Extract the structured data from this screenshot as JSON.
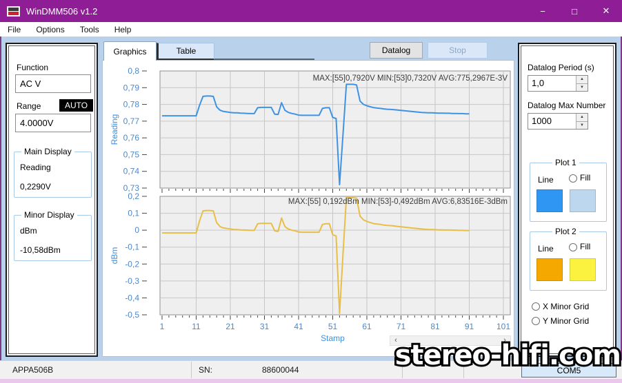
{
  "window": {
    "title": "WinDMM506 v1.2",
    "controls": {
      "minimize": "−",
      "maximize": "□",
      "close": "✕"
    }
  },
  "menu": {
    "items": [
      "File",
      "Options",
      "Tools",
      "Help"
    ]
  },
  "left_panel": {
    "function_label": "Function",
    "function_value": "AC V",
    "range_label": "Range",
    "range_mode": "AUTO",
    "range_value": "4.0000V",
    "main_display": {
      "title": "Main Display",
      "mode": "Reading",
      "value": "0,2290V"
    },
    "minor_display": {
      "title": "Minor Display",
      "mode": "dBm",
      "value": "-10,58dBm"
    }
  },
  "tabs": {
    "graphics": "Graphics",
    "table": "Table"
  },
  "buttons": {
    "datalog": "Datalog",
    "stop": "Stop"
  },
  "right_panel": {
    "datalog_period_label": "Datalog Period (s)",
    "datalog_period_value": "1,0",
    "datalog_max_label": "Datalog Max Number",
    "datalog_max_value": "1000",
    "plot1": {
      "title": "Plot 1",
      "line_label": "Line",
      "fill_label": "Fill",
      "line_color": "#2F96F3",
      "fill_color": "#BDD7EE"
    },
    "plot2": {
      "title": "Plot 2",
      "line_label": "Line",
      "fill_label": "Fill",
      "line_color": "#F5A800",
      "fill_color": "#FBF23F"
    },
    "x_minor_grid_label": "X Minor Grid",
    "y_minor_grid_label": "Y Minor Grid"
  },
  "spinner": {
    "up": "▲",
    "down": "▼"
  },
  "scrollbar": {
    "left_glyph": "‹",
    "right_glyph": "›"
  },
  "statusbar": {
    "device": "APPA506B",
    "sn_label": "SN:",
    "sn_value": "88600044",
    "port": "COM5"
  },
  "watermark": "stereo-hifi.com",
  "chart_data": [
    {
      "type": "line",
      "ylabel": "Reading",
      "xlabel": "",
      "stats": "MAX:[55]0,7920V  MIN:[53]0,7320V  AVG:775,2967E-3V",
      "ylim": [
        0.73,
        0.8
      ],
      "ytick_labels": [
        "0,8",
        "0,79",
        "0,78",
        "0,77",
        "0,76",
        "0,75",
        "0,74",
        "0,73"
      ],
      "xlim": [
        1,
        101
      ],
      "xtick_labels": [
        "1",
        "11",
        "21",
        "31",
        "41",
        "51",
        "61",
        "71",
        "81",
        "91",
        "101"
      ],
      "x_start": 1,
      "line_color": "#3E92E5",
      "values": [
        0.7732,
        0.7732,
        0.7732,
        0.7732,
        0.7732,
        0.7732,
        0.7732,
        0.7732,
        0.7732,
        0.7732,
        0.7732,
        0.7795,
        0.7848,
        0.785,
        0.785,
        0.7848,
        0.7785,
        0.7765,
        0.7758,
        0.7755,
        0.7752,
        0.775,
        0.775,
        0.7748,
        0.7747,
        0.7746,
        0.7745,
        0.7745,
        0.778,
        0.7782,
        0.7782,
        0.7782,
        0.7782,
        0.7742,
        0.774,
        0.781,
        0.7765,
        0.7752,
        0.7746,
        0.7742,
        0.7736,
        0.7735,
        0.7735,
        0.7735,
        0.7735,
        0.7735,
        0.7735,
        0.7776,
        0.778,
        0.778,
        0.7722,
        0.7716,
        0.732,
        0.762,
        0.792,
        0.792,
        0.792,
        0.7916,
        0.782,
        0.78,
        0.7792,
        0.7786,
        0.7781,
        0.7778,
        0.7776,
        0.7773,
        0.7771,
        0.777,
        0.7768,
        0.7766,
        0.7764,
        0.7762,
        0.776,
        0.7758,
        0.7756,
        0.7754,
        0.7752,
        0.7751,
        0.775,
        0.775,
        0.7749,
        0.7748,
        0.7748,
        0.7747,
        0.7747,
        0.7746,
        0.7746,
        0.7745,
        0.7745,
        0.7744,
        0.7744
      ]
    },
    {
      "type": "line",
      "ylabel": "dBm",
      "xlabel": "Stamp",
      "stats": "MAX:[55] 0,192dBm  MIN:[53]-0,492dBm  AVG:6,83516E-3dBm",
      "ylim": [
        -0.5,
        0.2
      ],
      "ytick_labels": [
        "0,2",
        "0,1",
        "0",
        "-0,1",
        "-0,2",
        "-0,3",
        "-0,4",
        "-0,5"
      ],
      "xlim": [
        1,
        101
      ],
      "xtick_labels": [
        "1",
        "11",
        "21",
        "31",
        "41",
        "51",
        "61",
        "71",
        "81",
        "91",
        "101"
      ],
      "x_start": 1,
      "line_color": "#E9BE45",
      "values": [
        -0.016,
        -0.016,
        -0.016,
        -0.016,
        -0.016,
        -0.016,
        -0.016,
        -0.016,
        -0.016,
        -0.016,
        -0.016,
        0.055,
        0.114,
        0.116,
        0.116,
        0.114,
        0.044,
        0.021,
        0.013,
        0.01,
        0.007,
        0.004,
        0.004,
        0.002,
        0.001,
        0.0,
        -0.001,
        -0.001,
        0.038,
        0.04,
        0.04,
        0.04,
        0.04,
        -0.004,
        -0.007,
        0.072,
        0.021,
        0.007,
        0.0,
        -0.004,
        -0.011,
        -0.012,
        -0.012,
        -0.012,
        -0.012,
        -0.012,
        -0.012,
        0.034,
        0.038,
        0.038,
        -0.027,
        -0.034,
        -0.492,
        -0.142,
        0.192,
        0.192,
        0.192,
        0.189,
        0.083,
        0.061,
        0.052,
        0.045,
        0.039,
        0.036,
        0.034,
        0.03,
        0.028,
        0.027,
        0.025,
        0.022,
        0.02,
        0.018,
        0.016,
        0.013,
        0.011,
        0.009,
        0.007,
        0.006,
        0.004,
        0.004,
        0.003,
        0.002,
        0.002,
        0.001,
        0.001,
        0.0,
        0.0,
        -0.001,
        -0.001,
        -0.002,
        -0.002
      ]
    }
  ]
}
